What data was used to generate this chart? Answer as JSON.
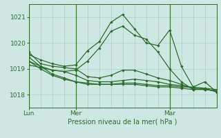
{
  "title": "",
  "xlabel": "Pression niveau de la mer( hPa )",
  "ylim": [
    1017.5,
    1021.5
  ],
  "xlim": [
    0,
    96
  ],
  "yticks": [
    1018,
    1019,
    1020,
    1021
  ],
  "xtick_positions": [
    0,
    24,
    72
  ],
  "xtick_labels": [
    "Lun",
    "Mer",
    "Mar"
  ],
  "vlines": [
    0,
    24,
    72
  ],
  "bg_color": "#cde8e2",
  "grid_color": "#a8cfc8",
  "line_color": "#2d6b2d",
  "sep_color": "#3a7a3a",
  "series": [
    [
      0,
      1019.55,
      6,
      1019.35,
      12,
      1019.2,
      18,
      1019.1,
      24,
      1019.15,
      30,
      1019.7,
      36,
      1020.05,
      42,
      1020.8,
      48,
      1021.1,
      54,
      1020.55,
      60,
      1020.0,
      66,
      1019.9,
      72,
      1020.5,
      78,
      1019.1,
      84,
      1018.3,
      90,
      1018.5,
      96,
      1018.1
    ],
    [
      0,
      1019.3,
      6,
      1019.1,
      12,
      1018.95,
      18,
      1018.9,
      24,
      1018.95,
      30,
      1019.3,
      36,
      1019.8,
      42,
      1020.45,
      48,
      1020.65,
      54,
      1020.3,
      60,
      1020.15,
      66,
      1019.65,
      72,
      1019.0,
      78,
      1018.5,
      84,
      1018.2,
      90,
      1018.25,
      96,
      1018.1
    ],
    [
      0,
      1019.65,
      6,
      1019.2,
      12,
      1019.1,
      18,
      1019.05,
      24,
      1019.0,
      30,
      1018.7,
      36,
      1018.65,
      42,
      1018.75,
      48,
      1018.95,
      54,
      1018.95,
      60,
      1018.8,
      66,
      1018.65,
      72,
      1018.55,
      78,
      1018.4,
      84,
      1018.25,
      90,
      1018.2,
      96,
      1018.15
    ],
    [
      0,
      1019.15,
      6,
      1019.05,
      12,
      1018.95,
      18,
      1018.9,
      24,
      1018.75,
      30,
      1018.55,
      36,
      1018.5,
      42,
      1018.5,
      48,
      1018.55,
      54,
      1018.6,
      60,
      1018.55,
      66,
      1018.5,
      72,
      1018.4,
      78,
      1018.35,
      84,
      1018.25,
      90,
      1018.2,
      96,
      1018.15
    ],
    [
      0,
      1019.45,
      6,
      1019.1,
      12,
      1018.8,
      18,
      1018.65,
      24,
      1018.5,
      30,
      1018.45,
      36,
      1018.4,
      42,
      1018.4,
      48,
      1018.45,
      54,
      1018.45,
      60,
      1018.4,
      66,
      1018.35,
      72,
      1018.35,
      78,
      1018.3,
      84,
      1018.3,
      90,
      1018.25,
      96,
      1018.2
    ],
    [
      0,
      1019.3,
      6,
      1019.0,
      12,
      1018.75,
      18,
      1018.6,
      24,
      1018.5,
      30,
      1018.4,
      36,
      1018.4,
      42,
      1018.4,
      48,
      1018.4,
      54,
      1018.4,
      60,
      1018.35,
      66,
      1018.3,
      72,
      1018.3,
      78,
      1018.25,
      84,
      1018.2,
      90,
      1018.2,
      96,
      1018.15
    ]
  ]
}
